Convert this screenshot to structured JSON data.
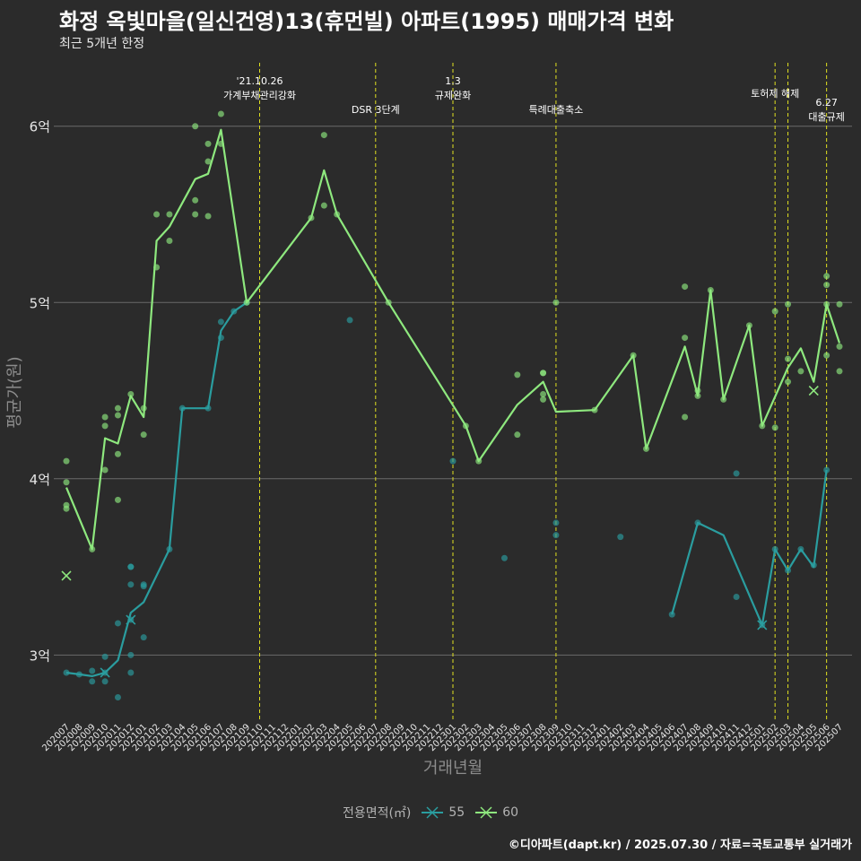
{
  "header": {
    "title": "화정 옥빛마을(일신건영)13(휴먼빌) 아파트(1995) 매매가격 변화",
    "subtitle": "최근 5개년 한정"
  },
  "footer": {
    "caption": "©디아파트(dapt.kr) / 2025.07.30 / 자료=국토교통부 실거래가"
  },
  "legend": {
    "title": "전용면적(㎡)",
    "items": [
      {
        "label": "55",
        "color": "#2a9d9f"
      },
      {
        "label": "60",
        "color": "#8ee87e"
      }
    ]
  },
  "chart_data": {
    "type": "line",
    "xlabel": "거래년월",
    "ylabel": "평균가(원)",
    "yticks": [
      {
        "value": 3.0,
        "label": "3억"
      },
      {
        "value": 4.0,
        "label": "4억"
      },
      {
        "value": 5.0,
        "label": "5억"
      },
      {
        "value": 6.0,
        "label": "6억"
      }
    ],
    "ylim": [
      2.62,
      6.36
    ],
    "categories": [
      "202007",
      "202008",
      "202009",
      "202010",
      "202011",
      "202012",
      "202101",
      "202102",
      "202103",
      "202104",
      "202105",
      "202106",
      "202107",
      "202108",
      "202109",
      "202110",
      "202111",
      "202112",
      "202201",
      "202202",
      "202203",
      "202204",
      "202205",
      "202206",
      "202207",
      "202208",
      "202209",
      "202210",
      "202211",
      "202212",
      "202301",
      "202302",
      "202303",
      "202304",
      "202305",
      "202306",
      "202307",
      "202308",
      "202309",
      "202310",
      "202311",
      "202312",
      "202401",
      "202402",
      "202403",
      "202404",
      "202405",
      "202406",
      "202407",
      "202408",
      "202409",
      "202410",
      "202411",
      "202412",
      "202501",
      "202502",
      "202503",
      "202504",
      "202505",
      "202506",
      "202507"
    ],
    "grid": "horizontal",
    "legend_position": "bottom",
    "events": [
      {
        "month": "202110",
        "label": "'21.10.26\n가계부채관리강화",
        "level": 0
      },
      {
        "month": "202207",
        "label": "DSR 3단계",
        "level": 2
      },
      {
        "month": "202301",
        "label": "1.3\n규제완화",
        "level": 0
      },
      {
        "month": "202309",
        "label": "특례대출축소",
        "level": 2
      },
      {
        "month": "202502",
        "label": "토허제 해제",
        "level": 1
      },
      {
        "month": "202503",
        "label": "",
        "level": 1
      },
      {
        "month": "202506",
        "label": "6.27\n대출규제",
        "level": 3
      }
    ],
    "series": [
      {
        "name": "55",
        "color": "#2a9d9f",
        "line": [
          [
            "202007",
            2.9
          ],
          [
            "202008",
            2.89
          ],
          [
            "202009",
            2.88
          ],
          [
            "202010",
            2.9
          ],
          [
            "202011",
            2.97
          ],
          [
            "202012",
            3.24
          ],
          [
            "202101",
            3.3
          ],
          [
            "202103",
            3.6
          ],
          [
            "202104",
            4.4
          ],
          [
            "202106",
            4.4
          ],
          [
            "202107",
            4.84
          ],
          [
            "202108",
            4.95
          ],
          [
            "202109",
            5.0
          ]
        ],
        "points": [
          [
            "202007",
            2.9
          ],
          [
            "202008",
            2.89
          ],
          [
            "202009",
            2.85
          ],
          [
            "202009",
            2.91
          ],
          [
            "202010",
            2.85
          ],
          [
            "202010",
            2.9
          ],
          [
            "202010",
            2.99
          ],
          [
            "202011",
            2.76
          ],
          [
            "202011",
            3.18
          ],
          [
            "202012",
            2.9
          ],
          [
            "202012",
            3.0
          ],
          [
            "202012",
            3.2
          ],
          [
            "202012",
            3.4
          ],
          [
            "202012",
            3.5
          ],
          [
            "202012",
            3.5
          ],
          [
            "202101",
            3.1
          ],
          [
            "202101",
            3.4
          ],
          [
            "202101",
            3.39
          ],
          [
            "202103",
            3.6
          ],
          [
            "202104",
            4.4
          ],
          [
            "202106",
            4.4
          ],
          [
            "202107",
            4.8
          ],
          [
            "202107",
            4.89
          ],
          [
            "202108",
            4.95
          ],
          [
            "202109",
            5.0
          ],
          [
            "202205",
            4.9
          ],
          [
            "202301",
            4.1
          ],
          [
            "202305",
            3.55
          ],
          [
            "202309",
            3.68
          ],
          [
            "202309",
            3.75
          ],
          [
            "202402",
            3.67
          ],
          [
            "202406",
            3.23
          ],
          [
            "202408",
            3.75
          ],
          [
            "202411",
            3.33
          ],
          [
            "202411",
            4.03
          ],
          [
            "202501",
            3.17
          ],
          [
            "202502",
            3.6
          ],
          [
            "202503",
            3.48
          ],
          [
            "202504",
            3.6
          ],
          [
            "202505",
            3.51
          ],
          [
            "202506",
            4.05
          ]
        ],
        "line2": [
          [
            "202406",
            3.23
          ],
          [
            "202408",
            3.75
          ],
          [
            "202410",
            3.68
          ],
          [
            "202501",
            3.17
          ],
          [
            "202502",
            3.6
          ],
          [
            "202503",
            3.48
          ],
          [
            "202504",
            3.6
          ],
          [
            "202505",
            3.5
          ],
          [
            "202506",
            4.05
          ]
        ],
        "cancelled": [
          [
            "202010",
            2.9
          ],
          [
            "202012",
            3.2
          ],
          [
            "202501",
            3.17
          ]
        ]
      },
      {
        "name": "60",
        "color": "#8ee87e",
        "line": [
          [
            "202007",
            3.95
          ],
          [
            "202009",
            3.6
          ],
          [
            "202010",
            4.23
          ],
          [
            "202011",
            4.2
          ],
          [
            "202012",
            4.47
          ],
          [
            "202101",
            4.35
          ],
          [
            "202102",
            5.35
          ],
          [
            "202103",
            5.43
          ],
          [
            "202105",
            5.7
          ],
          [
            "202106",
            5.73
          ],
          [
            "202107",
            5.98
          ],
          [
            "202109",
            5.0
          ],
          [
            "202202",
            5.48
          ],
          [
            "202203",
            5.75
          ],
          [
            "202204",
            5.5
          ],
          [
            "202208",
            5.0
          ],
          [
            "202302",
            4.3
          ],
          [
            "202303",
            4.1
          ],
          [
            "202306",
            4.42
          ],
          [
            "202308",
            4.55
          ],
          [
            "202309",
            4.38
          ],
          [
            "202312",
            4.39
          ],
          [
            "202403",
            4.7
          ],
          [
            "202404",
            4.17
          ],
          [
            "202407",
            4.75
          ],
          [
            "202408",
            4.47
          ],
          [
            "202409",
            5.07
          ],
          [
            "202410",
            4.45
          ],
          [
            "202412",
            4.87
          ],
          [
            "202501",
            4.3
          ],
          [
            "202503",
            4.63
          ],
          [
            "202504",
            4.74
          ],
          [
            "202505",
            4.55
          ],
          [
            "202506",
            4.99
          ],
          [
            "202507",
            4.77
          ]
        ],
        "points": [
          [
            "202007",
            4.1
          ],
          [
            "202007",
            3.98
          ],
          [
            "202007",
            3.85
          ],
          [
            "202007",
            3.83
          ],
          [
            "202009",
            3.6
          ],
          [
            "202010",
            4.35
          ],
          [
            "202010",
            4.3
          ],
          [
            "202010",
            4.05
          ],
          [
            "202011",
            4.4
          ],
          [
            "202011",
            4.36
          ],
          [
            "202011",
            4.14
          ],
          [
            "202011",
            3.88
          ],
          [
            "202012",
            4.48
          ],
          [
            "202101",
            4.4
          ],
          [
            "202101",
            4.25
          ],
          [
            "202102",
            5.5
          ],
          [
            "202102",
            5.2
          ],
          [
            "202103",
            5.5
          ],
          [
            "202103",
            5.35
          ],
          [
            "202105",
            6.0
          ],
          [
            "202105",
            5.58
          ],
          [
            "202105",
            5.5
          ],
          [
            "202106",
            5.9
          ],
          [
            "202106",
            5.8
          ],
          [
            "202106",
            5.49
          ],
          [
            "202107",
            6.07
          ],
          [
            "202107",
            5.9
          ],
          [
            "202109",
            5.0
          ],
          [
            "202202",
            5.48
          ],
          [
            "202203",
            5.95
          ],
          [
            "202203",
            5.55
          ],
          [
            "202204",
            5.5
          ],
          [
            "202208",
            5.0
          ],
          [
            "202302",
            4.3
          ],
          [
            "202303",
            4.1
          ],
          [
            "202306",
            4.59
          ],
          [
            "202306",
            4.25
          ],
          [
            "202308",
            4.6
          ],
          [
            "202308",
            4.6
          ],
          [
            "202308",
            4.45
          ],
          [
            "202308",
            4.48
          ],
          [
            "202309",
            5.0
          ],
          [
            "202312",
            4.39
          ],
          [
            "202403",
            4.7
          ],
          [
            "202404",
            4.17
          ],
          [
            "202407",
            5.09
          ],
          [
            "202407",
            4.8
          ],
          [
            "202407",
            4.35
          ],
          [
            "202408",
            4.5
          ],
          [
            "202408",
            4.47
          ],
          [
            "202409",
            5.07
          ],
          [
            "202410",
            4.45
          ],
          [
            "202412",
            4.87
          ],
          [
            "202501",
            4.3
          ],
          [
            "202502",
            4.95
          ],
          [
            "202502",
            4.29
          ],
          [
            "202503",
            4.99
          ],
          [
            "202503",
            4.68
          ],
          [
            "202503",
            4.55
          ],
          [
            "202504",
            4.61
          ],
          [
            "202506",
            5.15
          ],
          [
            "202506",
            5.1
          ],
          [
            "202506",
            4.7
          ],
          [
            "202506",
            4.99
          ],
          [
            "202507",
            4.99
          ],
          [
            "202507",
            4.75
          ],
          [
            "202507",
            4.61
          ]
        ],
        "cancelled": [
          [
            "202007",
            3.45
          ],
          [
            "202505",
            4.5
          ]
        ]
      }
    ]
  }
}
